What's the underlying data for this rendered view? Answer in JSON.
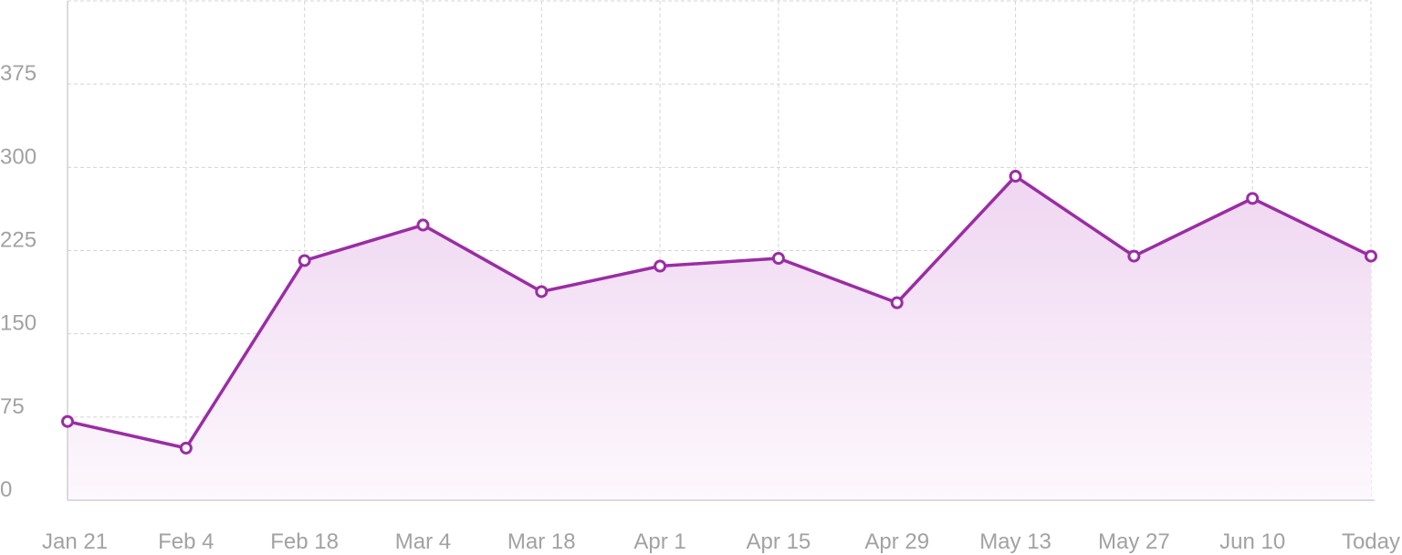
{
  "chart_data": {
    "type": "area",
    "title": "",
    "xlabel": "",
    "ylabel": "",
    "categories": [
      "Jan 21",
      "Feb 4",
      "Feb 18",
      "Mar 4",
      "Mar 18",
      "Apr 1",
      "Apr 15",
      "Apr 29",
      "May 13",
      "May 27",
      "Jun 10",
      "Today"
    ],
    "series": [
      {
        "values": [
          71,
          47,
          216,
          248,
          188,
          211,
          218,
          178,
          292,
          220,
          272,
          220
        ]
      }
    ],
    "ylim": [
      0,
      450
    ],
    "yticks": [
      0,
      75,
      150,
      225,
      300,
      375
    ],
    "grid": true,
    "legend": "none",
    "colors": {
      "line": "#9b2ca5",
      "fill_top": "#efd6f1",
      "fill_bottom": "#fdf8fd"
    }
  }
}
